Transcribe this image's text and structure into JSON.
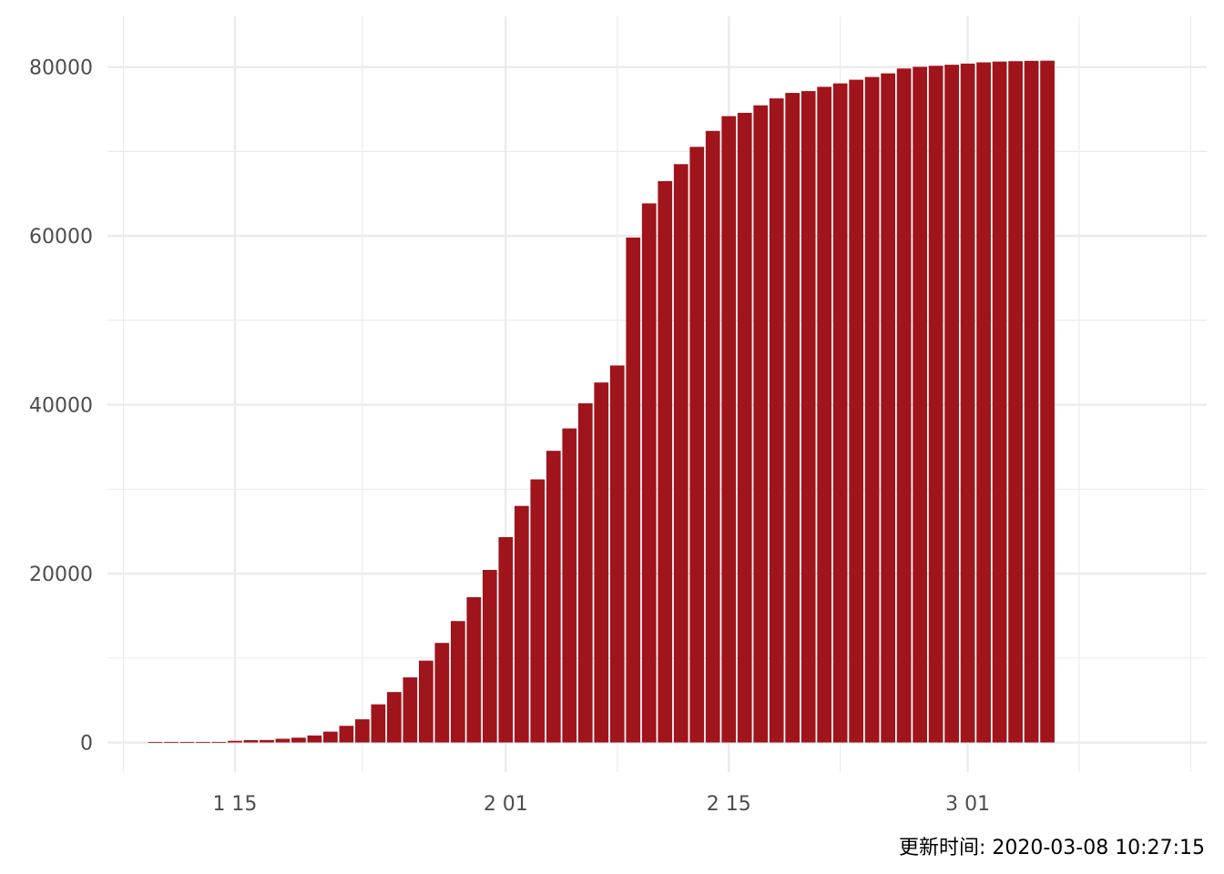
{
  "chart_data": {
    "type": "bar",
    "title": "",
    "xlabel": "",
    "ylabel": "",
    "x_start": "2020-01-10",
    "x_end": "2020-03-07",
    "xlim": [
      "2020-01-07",
      "2020-03-16"
    ],
    "ylim": [
      -3500,
      86000
    ],
    "x_ticks": [
      {
        "date": "2020-01-15",
        "label": "1 15"
      },
      {
        "date": "2020-02-01",
        "label": "2 01"
      },
      {
        "date": "2020-02-15",
        "label": "2 15"
      },
      {
        "date": "2020-03-01",
        "label": "3 01"
      }
    ],
    "x_minor_ticks": [
      "2020-01-08",
      "2020-01-23",
      "2020-02-08",
      "2020-02-22",
      "2020-03-08",
      "2020-03-15"
    ],
    "y_ticks": [
      0,
      20000,
      40000,
      60000,
      80000
    ],
    "y_minor_ticks": [
      10000,
      30000,
      50000,
      70000
    ],
    "values": [
      41,
      41,
      41,
      45,
      62,
      198,
      275,
      291,
      440,
      571,
      830,
      1287,
      1975,
      2744,
      4515,
      5974,
      7711,
      9692,
      11791,
      14380,
      17205,
      20438,
      24324,
      28018,
      31161,
      34546,
      37198,
      40171,
      42638,
      44653,
      59804,
      63851,
      66492,
      68500,
      70548,
      72436,
      74185,
      74576,
      75465,
      76288,
      76936,
      77150,
      77658,
      78064,
      78497,
      78824,
      79251,
      79824,
      80026,
      80151,
      80270,
      80409,
      80552,
      80651,
      80695,
      80735,
      80754
    ],
    "bar_color": "#A0141B",
    "grid": true,
    "grid_color": "#EBEBEB"
  },
  "caption": "更新时间: 2020-03-08 10:27:15"
}
